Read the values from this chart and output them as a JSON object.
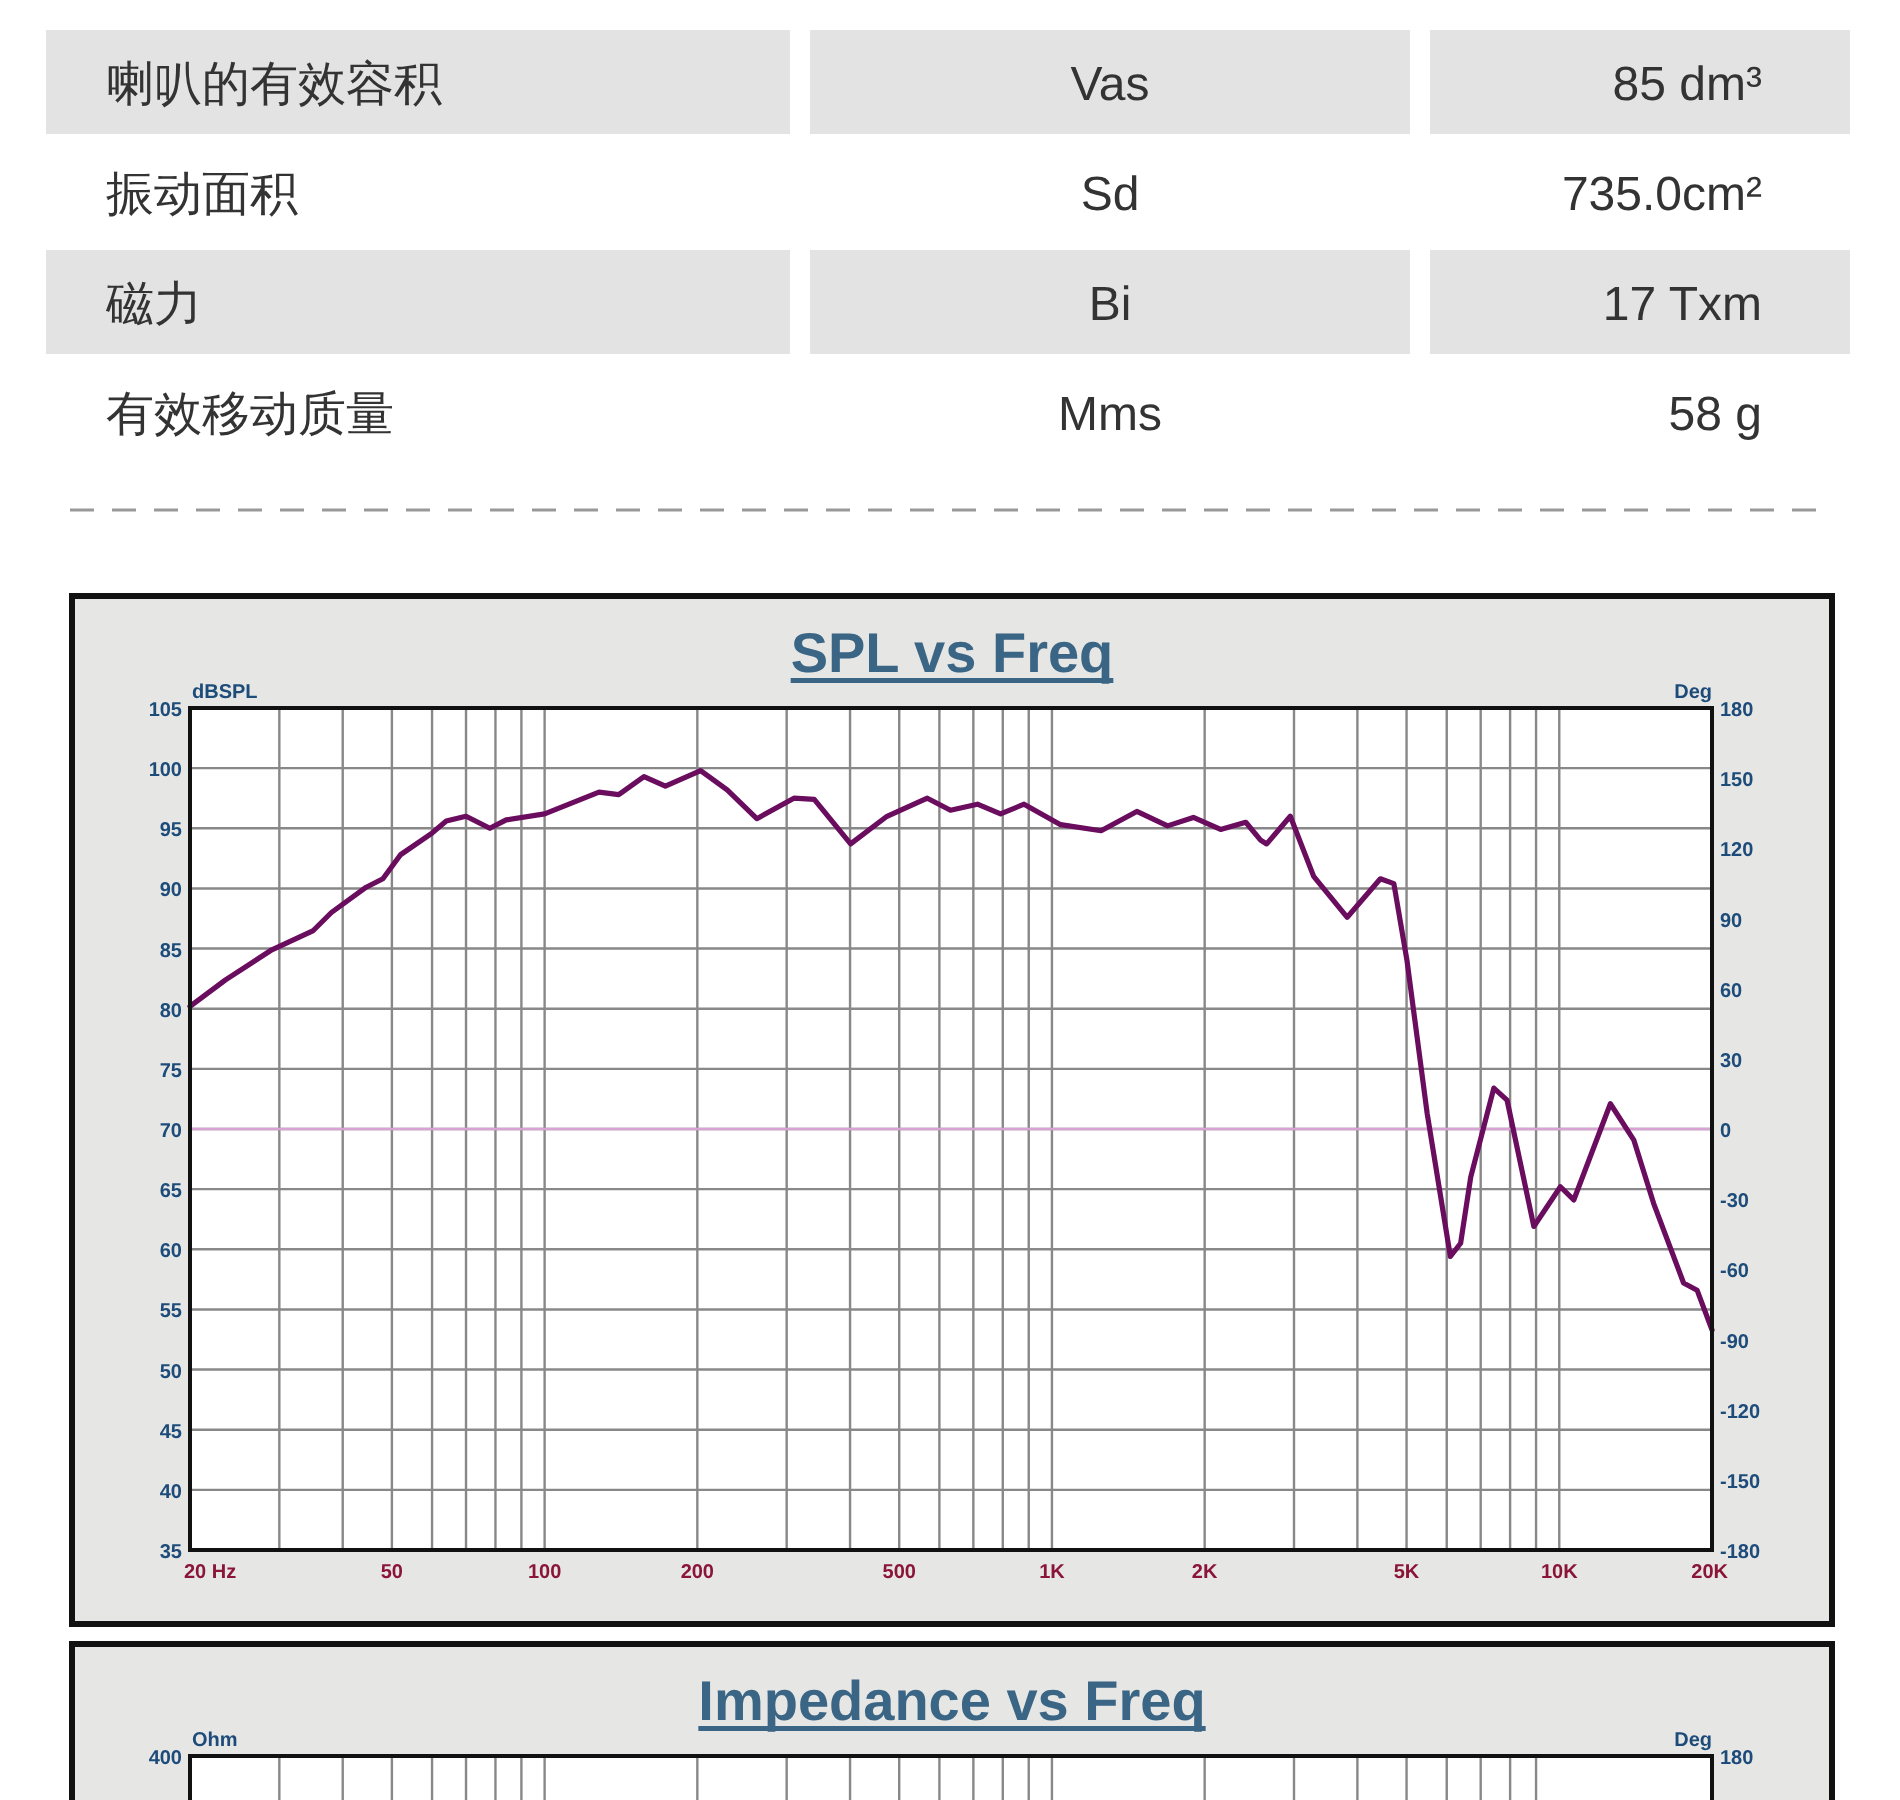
{
  "chart_data": [
    {
      "type": "other",
      "annotations": [
        "喇叭的有效容积",
        "Vas",
        "85 dm³",
        "振动面积",
        "Sd",
        "735.0cm²",
        "磁力",
        "Bi",
        "17 Txm",
        "有效移动质量",
        "Mms",
        "58 g"
      ]
    },
    {
      "type": "line",
      "title": "SPL vs Freq",
      "ylabel": "dBSPL",
      "y2label": "Deg",
      "log": "x",
      "grid": true,
      "marker": "none",
      "line_style": "solid",
      "xlim": [
        20,
        20000
      ],
      "xticks": [
        {
          "value": 20,
          "label": "20  Hz"
        },
        50,
        100,
        200,
        500,
        {
          "value": 1000,
          "label": "1K"
        },
        {
          "value": 2000,
          "label": "2K"
        },
        {
          "value": 5000,
          "label": "5K"
        },
        {
          "value": 10000,
          "label": "10K"
        },
        {
          "value": 20000,
          "label": "20K"
        }
      ],
      "ylim": [
        35,
        105
      ],
      "yticks": [
        35,
        40,
        45,
        50,
        55,
        60,
        65,
        70,
        75,
        80,
        85,
        90,
        95,
        100,
        105
      ],
      "y2lim": [
        -180,
        180
      ],
      "y2ticks": [
        -180,
        -150,
        -120,
        -90,
        -60,
        -30,
        0,
        30,
        60,
        90,
        120,
        150,
        180
      ],
      "ref_lines": [
        {
          "axis": "y",
          "value": 70,
          "color": "#d9a3d4"
        }
      ],
      "series": [
        {
          "color": "#6a0d5e",
          "x": [
            20,
            23.5,
            29,
            35,
            38,
            44.5,
            48,
            52,
            60,
            64,
            70,
            78,
            84,
            100,
            128,
            140,
            157,
            173,
            203,
            229,
            262,
            310,
            340,
            401,
            473,
            568,
            631,
            713,
            792,
            881,
            1040,
            1250,
            1470,
            1690,
            1900,
            2150,
            2410,
            2580,
            2650,
            2950,
            3280,
            3820,
            4440,
            4720,
            5010,
            5490,
            6100,
            6390,
            6690,
            7430,
            7890,
            8910,
            10050,
            10680,
            12610,
            14020,
            15350,
            17580,
            18690,
            20000
          ],
          "values": [
            80.2,
            82.4,
            84.9,
            86.5,
            88.0,
            90.1,
            90.8,
            92.8,
            94.6,
            95.6,
            96.0,
            95.0,
            95.7,
            96.2,
            98.0,
            97.8,
            99.3,
            98.5,
            99.8,
            98.2,
            95.8,
            97.5,
            97.4,
            93.7,
            96.0,
            97.5,
            96.5,
            97.0,
            96.2,
            97.0,
            95.3,
            94.8,
            96.4,
            95.2,
            95.9,
            94.9,
            95.5,
            94.0,
            93.7,
            96.0,
            91.0,
            87.6,
            90.8,
            90.4,
            84.0,
            71.3,
            59.4,
            60.5,
            66.0,
            73.4,
            72.4,
            61.9,
            65.2,
            64.1,
            72.1,
            69.1,
            63.8,
            57.2,
            56.6,
            53.3
          ]
        }
      ]
    },
    {
      "type": "other",
      "title": "Impedance vs Freq",
      "ylabel": "Ohm",
      "y2label": "Deg",
      "annotations": [
        "400",
        "180"
      ]
    }
  ]
}
